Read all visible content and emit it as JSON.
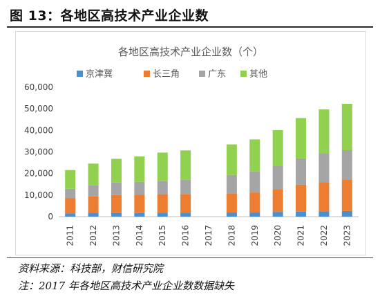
{
  "figure": {
    "title": "图 13：各地区高技术产业企业数",
    "source_note": "资料来源：科技部，财信研究院",
    "footnote": "注：2017 年各地区高技术产业企业数数据缺失"
  },
  "chart_data": {
    "type": "bar",
    "stacked": true,
    "title": "各地区高技术产业企业数（个）",
    "xlabel": "",
    "ylabel": "",
    "categories": [
      "2011",
      "2012",
      "2013",
      "2014",
      "2015",
      "2016",
      "2017",
      "2018",
      "2019",
      "2020",
      "2021",
      "2022",
      "2023"
    ],
    "ylim": [
      0,
      60000
    ],
    "yticks": [
      0,
      10000,
      20000,
      30000,
      40000,
      50000,
      60000
    ],
    "ytick_labels": [
      "0",
      "10,000",
      "20,000",
      "30,000",
      "40,000",
      "50,000",
      "60,000"
    ],
    "grid": false,
    "legend_position": "top",
    "series": [
      {
        "name": "京津冀",
        "color": "#4a8fd0",
        "values": [
          1500,
          1600,
          1700,
          1700,
          1800,
          1800,
          null,
          1900,
          2000,
          2200,
          2300,
          2500,
          2600
        ]
      },
      {
        "name": "长三角",
        "color": "#ed7d31",
        "values": [
          7000,
          7800,
          8300,
          8400,
          8600,
          8700,
          null,
          8700,
          9200,
          10500,
          12500,
          13500,
          14400
        ]
      },
      {
        "name": "广东",
        "color": "#a5a5a5",
        "values": [
          4400,
          5100,
          5800,
          6000,
          6200,
          6600,
          null,
          8700,
          9700,
          11000,
          12200,
          13200,
          13800
        ]
      },
      {
        "name": "其他",
        "color": "#92d050",
        "values": [
          8700,
          10100,
          11000,
          11800,
          13100,
          13600,
          null,
          14200,
          14900,
          16400,
          18700,
          20500,
          21500
        ]
      }
    ]
  }
}
